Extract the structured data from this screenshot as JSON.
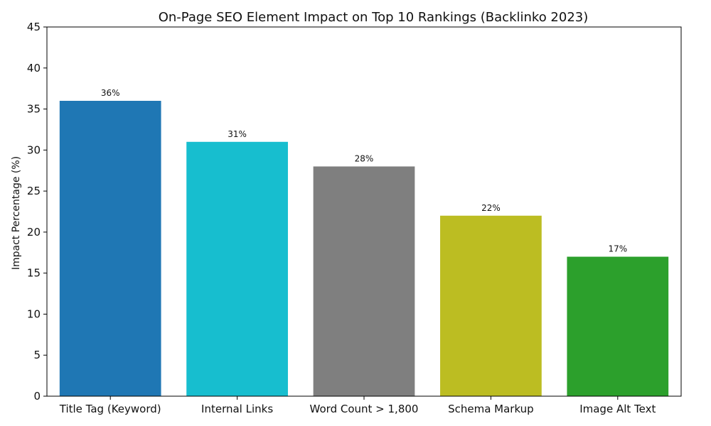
{
  "chart_data": {
    "type": "bar",
    "title": "On-Page SEO Element Impact on Top 10 Rankings (Backlinko 2023)",
    "xlabel": "",
    "ylabel": "Impact Percentage (%)",
    "categories": [
      "Title Tag (Keyword)",
      "Internal Links",
      "Word Count > 1,800",
      "Schema Markup",
      "Image Alt Text"
    ],
    "values": [
      36,
      31,
      28,
      22,
      17
    ],
    "data_labels": [
      "36%",
      "31%",
      "28%",
      "22%",
      "17%"
    ],
    "colors": [
      "#1f77b4",
      "#17becf",
      "#7f7f7f",
      "#bcbd22",
      "#2ca02c"
    ],
    "ylim": [
      0,
      45
    ],
    "yticks": [
      0,
      5,
      10,
      15,
      20,
      25,
      30,
      35,
      40,
      45
    ],
    "grid": false,
    "legend": "none"
  }
}
